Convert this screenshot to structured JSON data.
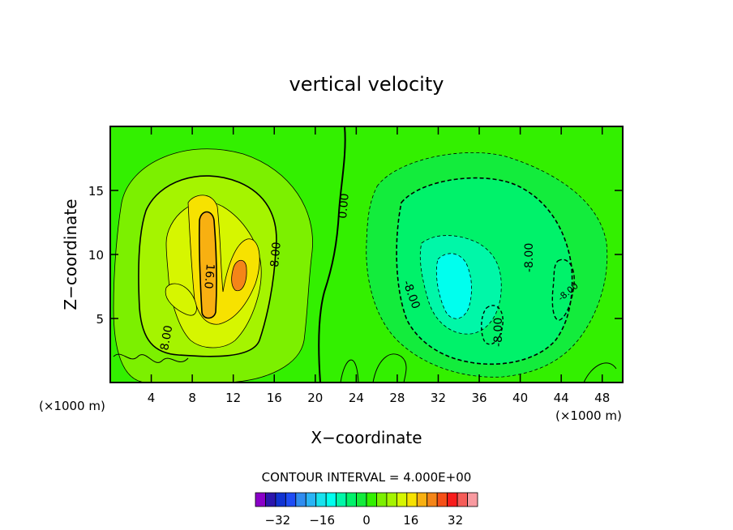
{
  "chart_data": {
    "type": "heatmap",
    "title": "vertical velocity",
    "xlabel": "X−coordinate",
    "ylabel": "Z−coordinate",
    "x_unit_left": "(×1000 m)",
    "x_unit_right": "(×1000 m)",
    "xlim": [
      0,
      50
    ],
    "ylim": [
      0,
      20
    ],
    "xticks": [
      4,
      8,
      12,
      16,
      20,
      24,
      28,
      32,
      36,
      40,
      44,
      48
    ],
    "yticks": [
      5,
      10,
      15
    ],
    "xtick_labels": [
      "4",
      "8",
      "12",
      "16",
      "20",
      "24",
      "28",
      "32",
      "36",
      "40",
      "44",
      "48"
    ],
    "ytick_labels": [
      "5",
      "10",
      "15"
    ],
    "contour_interval_text": "CONTOUR INTERVAL = 4.000E+00",
    "contour_labels": [
      "0.00",
      "8.00",
      "8.00",
      "16.0",
      "-8.00",
      "-8.00",
      "-8.00",
      "-8.00"
    ],
    "colorbar": {
      "min": -40,
      "max": 40,
      "step": 4,
      "tick_values": [
        -32,
        -16,
        0,
        16,
        32
      ],
      "tick_labels": [
        "−32",
        "−16",
        "0",
        "16",
        "32"
      ],
      "colors": [
        "#8a00c8",
        "#2c16ad",
        "#1133d2",
        "#1e4cf5",
        "#2f8cf0",
        "#29b4f5",
        "#18e2ee",
        "#00ffee",
        "#00f7a8",
        "#00f26a",
        "#13ec3c",
        "#33f000",
        "#7cf000",
        "#a5f400",
        "#d6f600",
        "#f7e200",
        "#f8b011",
        "#f48518",
        "#f55018",
        "#f81c1c",
        "#f55c58",
        "#f89aa0"
      ]
    },
    "features": [
      {
        "kind": "updraft",
        "x_center": 10,
        "z_center": 9,
        "peak_value": 24
      },
      {
        "kind": "downdraft",
        "x_center": 34,
        "z_center": 7,
        "peak_value": -16
      }
    ]
  }
}
